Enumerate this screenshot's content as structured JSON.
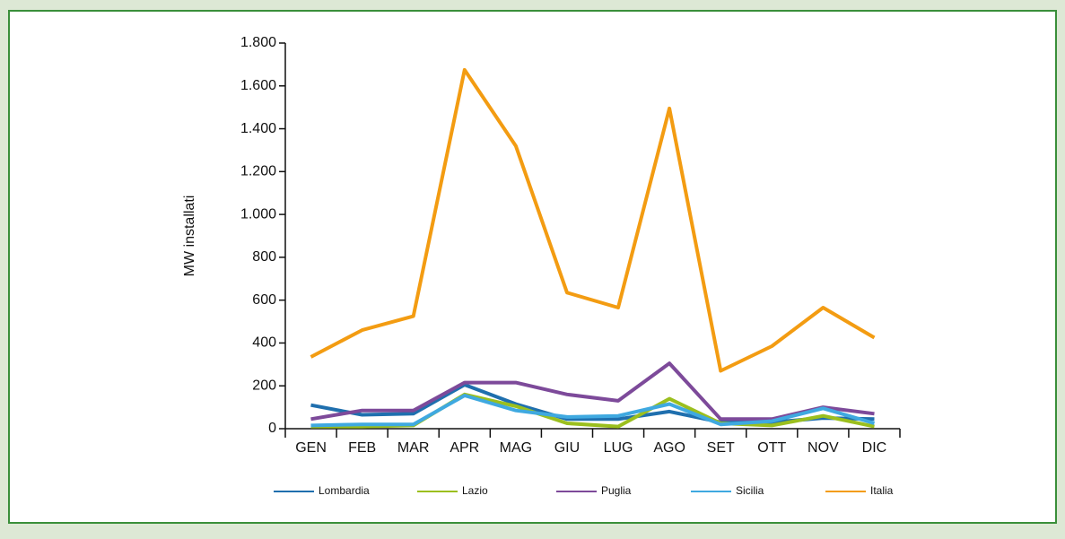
{
  "chart_data": {
    "type": "line",
    "y_label": "MW installati",
    "categories": [
      "GEN",
      "FEB",
      "MAR",
      "APR",
      "MAG",
      "GIU",
      "LUG",
      "AGO",
      "SET",
      "OTT",
      "NOV",
      "DIC"
    ],
    "series": [
      {
        "name": "Lombardia",
        "color": "#1f6fae",
        "values": [
          110,
          65,
          70,
          205,
          115,
          45,
          45,
          80,
          30,
          30,
          50,
          45
        ]
      },
      {
        "name": "Lazio",
        "color": "#9bbf1e",
        "values": [
          10,
          10,
          15,
          160,
          105,
          25,
          10,
          140,
          25,
          15,
          60,
          10
        ]
      },
      {
        "name": "Puglia",
        "color": "#7d4a9a",
        "values": [
          45,
          85,
          85,
          215,
          215,
          160,
          130,
          305,
          45,
          45,
          100,
          70
        ]
      },
      {
        "name": "Sicilia",
        "color": "#3fa9e0",
        "values": [
          15,
          20,
          20,
          155,
          85,
          55,
          60,
          115,
          20,
          35,
          95,
          25
        ]
      },
      {
        "name": "Italia",
        "color": "#f39c12",
        "values": [
          335,
          460,
          525,
          1675,
          1320,
          635,
          565,
          1495,
          270,
          385,
          565,
          425
        ]
      }
    ],
    "ylim": [
      0,
      1800
    ],
    "yticks": [
      0,
      200,
      400,
      600,
      800,
      {
        "value": 1000,
        "label": "1.000"
      },
      {
        "value": 1200,
        "label": "1.200"
      },
      {
        "value": 1400,
        "label": "1.400"
      },
      {
        "value": 1600,
        "label": "1.600"
      },
      {
        "value": 1800,
        "label": "1.800"
      }
    ],
    "grid": false
  }
}
